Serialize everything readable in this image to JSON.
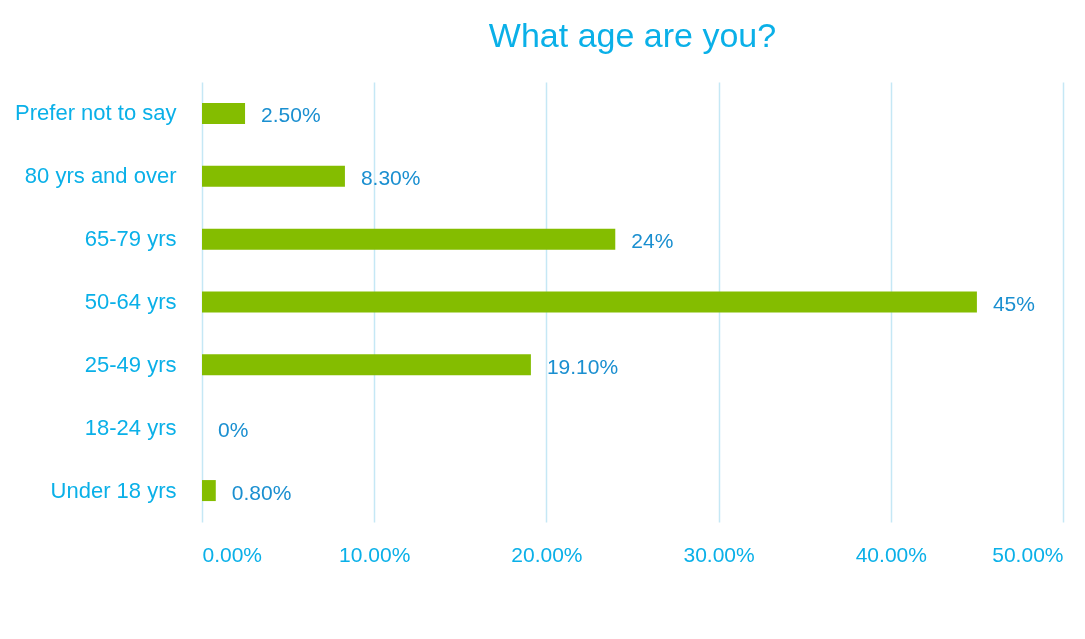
{
  "chart_data": {
    "type": "bar",
    "orientation": "horizontal",
    "title": "What age are you?",
    "categories": [
      "Prefer not to say",
      "80 yrs and over",
      "65-79 yrs",
      "50-64 yrs",
      "25-49 yrs",
      "18-24 yrs",
      "Under 18 yrs"
    ],
    "values": [
      2.5,
      8.3,
      24,
      45,
      19.1,
      0,
      0.8
    ],
    "value_labels": [
      "2.50%",
      "8.30%",
      "24%",
      "45%",
      "19.10%",
      "0%",
      "0.80%"
    ],
    "color": "#84bd00",
    "xlim": [
      0,
      50
    ],
    "xticks": [
      {
        "value": 0,
        "label": "0.00%"
      },
      {
        "value": 10,
        "label": "10.00%"
      },
      {
        "value": 20,
        "label": "20.00%"
      },
      {
        "value": 30,
        "label": "30.00%"
      },
      {
        "value": 40,
        "label": "40.00%"
      },
      {
        "value": 50,
        "label": "50.00%"
      }
    ],
    "grid": "x"
  }
}
